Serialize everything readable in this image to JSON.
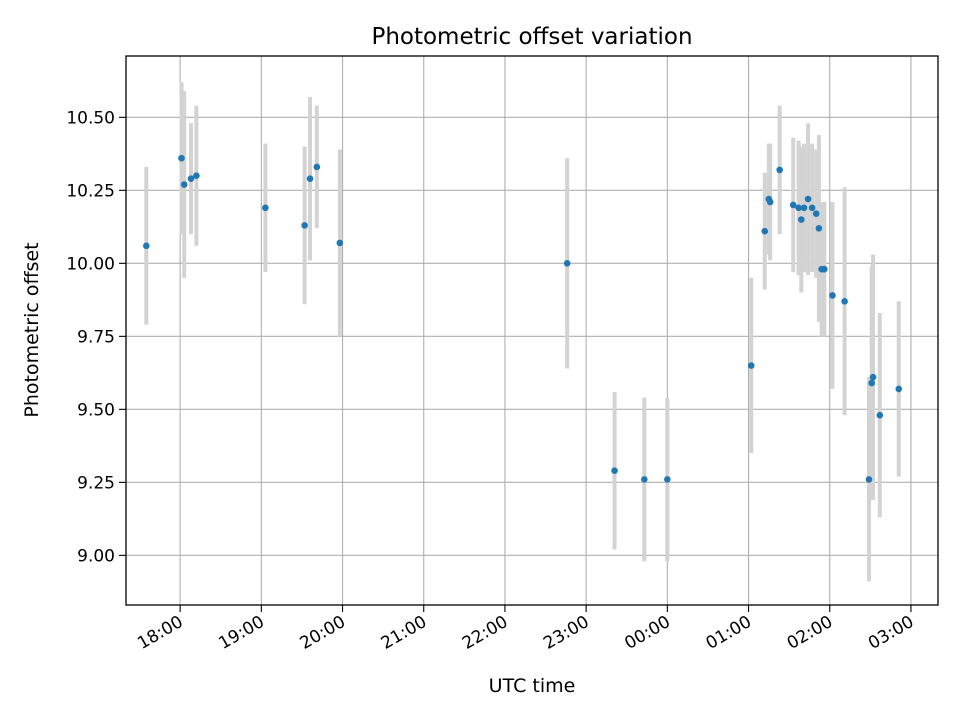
{
  "chart_data": {
    "type": "scatter",
    "title": "Photometric offset variation",
    "xlabel": "UTC time",
    "ylabel": "Photometric offset",
    "x_unit": "UTC hour (values past 24:00 belong to the following day)",
    "xlim": [
      "17:20",
      "27:20"
    ],
    "ylim": [
      8.83,
      10.71
    ],
    "xticks": [
      "18:00",
      "19:00",
      "20:00",
      "21:00",
      "22:00",
      "23:00",
      "00:00",
      "01:00",
      "02:00",
      "03:00"
    ],
    "yticks": [
      "9.00",
      "9.25",
      "9.50",
      "9.75",
      "10.00",
      "10.25",
      "10.50"
    ],
    "grid": true,
    "marker_color": "#1f77b4",
    "errorbar_color": "#d3d3d3",
    "points": [
      {
        "x": "17:35",
        "y": 10.06,
        "err": 0.27
      },
      {
        "x": "18:01",
        "y": 10.36,
        "err": 0.26
      },
      {
        "x": "18:03",
        "y": 10.27,
        "err": 0.32
      },
      {
        "x": "18:08",
        "y": 10.29,
        "err": 0.19
      },
      {
        "x": "18:12",
        "y": 10.3,
        "err": 0.24
      },
      {
        "x": "19:03",
        "y": 10.19,
        "err": 0.22
      },
      {
        "x": "19:32",
        "y": 10.13,
        "err": 0.27
      },
      {
        "x": "19:36",
        "y": 10.29,
        "err": 0.28
      },
      {
        "x": "19:41",
        "y": 10.33,
        "err": 0.21
      },
      {
        "x": "19:58",
        "y": 10.07,
        "err": 0.32
      },
      {
        "x": "22:46",
        "y": 10.0,
        "err": 0.36
      },
      {
        "x": "23:21",
        "y": 9.29,
        "err": 0.27
      },
      {
        "x": "23:43",
        "y": 9.26,
        "err": 0.28
      },
      {
        "x": "24:00",
        "y": 9.26,
        "err": 0.28
      },
      {
        "x": "25:02",
        "y": 9.65,
        "err": 0.3
      },
      {
        "x": "25:12",
        "y": 10.11,
        "err": 0.2
      },
      {
        "x": "25:15",
        "y": 10.22,
        "err": 0.19
      },
      {
        "x": "25:16",
        "y": 10.21,
        "err": 0.2
      },
      {
        "x": "25:23",
        "y": 10.32,
        "err": 0.22
      },
      {
        "x": "25:33",
        "y": 10.2,
        "err": 0.23
      },
      {
        "x": "25:37",
        "y": 10.19,
        "err": 0.23
      },
      {
        "x": "25:39",
        "y": 10.15,
        "err": 0.25
      },
      {
        "x": "25:41",
        "y": 10.19,
        "err": 0.22
      },
      {
        "x": "25:44",
        "y": 10.22,
        "err": 0.26
      },
      {
        "x": "25:47",
        "y": 10.19,
        "err": 0.22
      },
      {
        "x": "25:50",
        "y": 10.17,
        "err": 0.22
      },
      {
        "x": "25:52",
        "y": 10.12,
        "err": 0.32
      },
      {
        "x": "25:54",
        "y": 9.98,
        "err": 0.23
      },
      {
        "x": "25:56",
        "y": 9.98,
        "err": 0.23
      },
      {
        "x": "26:02",
        "y": 9.89,
        "err": 0.32
      },
      {
        "x": "26:11",
        "y": 9.87,
        "err": 0.39
      },
      {
        "x": "26:29",
        "y": 9.26,
        "err": 0.35
      },
      {
        "x": "26:31",
        "y": 9.59,
        "err": 0.4
      },
      {
        "x": "26:32",
        "y": 9.61,
        "err": 0.42
      },
      {
        "x": "26:37",
        "y": 9.48,
        "err": 0.35
      },
      {
        "x": "26:51",
        "y": 9.57,
        "err": 0.3
      }
    ]
  }
}
